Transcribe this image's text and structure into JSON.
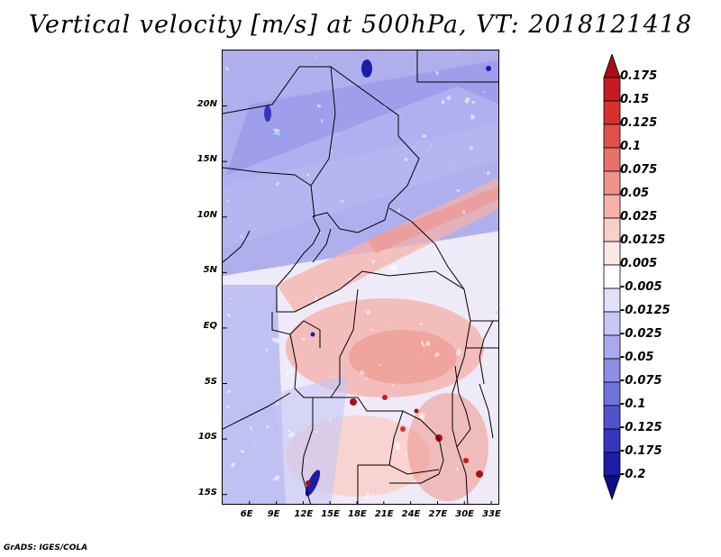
{
  "title": "Vertical velocity [m/s] at 500hPa, VT: 2018121418",
  "footer": "GrADS: IGES/COLA",
  "map": {
    "lon_range": [
      3,
      34
    ],
    "lat_range": [
      -16,
      25
    ],
    "lat_labels": [
      {
        "value": 20,
        "label": "20N"
      },
      {
        "value": 15,
        "label": "15N"
      },
      {
        "value": 10,
        "label": "10N"
      },
      {
        "value": 5,
        "label": "5N"
      },
      {
        "value": 0,
        "label": "EQ"
      },
      {
        "value": -5,
        "label": "5S"
      },
      {
        "value": -10,
        "label": "10S"
      },
      {
        "value": -15,
        "label": "15S"
      }
    ],
    "lon_labels": [
      {
        "value": 6,
        "label": "6E"
      },
      {
        "value": 9,
        "label": "9E"
      },
      {
        "value": 12,
        "label": "12E"
      },
      {
        "value": 15,
        "label": "15E"
      },
      {
        "value": 18,
        "label": "18E"
      },
      {
        "value": 21,
        "label": "21E"
      },
      {
        "value": 24,
        "label": "24E"
      },
      {
        "value": 27,
        "label": "27E"
      },
      {
        "value": 30,
        "label": "30E"
      },
      {
        "value": 33,
        "label": "33E"
      }
    ]
  },
  "colorbar": {
    "levels": [
      "0.175",
      "0.15",
      "0.125",
      "0.1",
      "0.075",
      "0.05",
      "0.025",
      "0.0125",
      "0.005",
      "-0.005",
      "-0.0125",
      "-0.025",
      "-0.05",
      "-0.075",
      "-0.1",
      "-0.125",
      "-0.175",
      "-0.2"
    ],
    "colors": [
      "#a50f15",
      "#c51b23",
      "#d8302d",
      "#e2504a",
      "#e8716a",
      "#ef938b",
      "#f4b2ab",
      "#f8cfca",
      "#fbe7e4",
      "#ffffff",
      "#e0e0fb",
      "#c7c7f5",
      "#a9a9ee",
      "#8d8de6",
      "#7171dc",
      "#5252cf",
      "#3535bd",
      "#1c1ca6",
      "#0d0d8a"
    ]
  }
}
